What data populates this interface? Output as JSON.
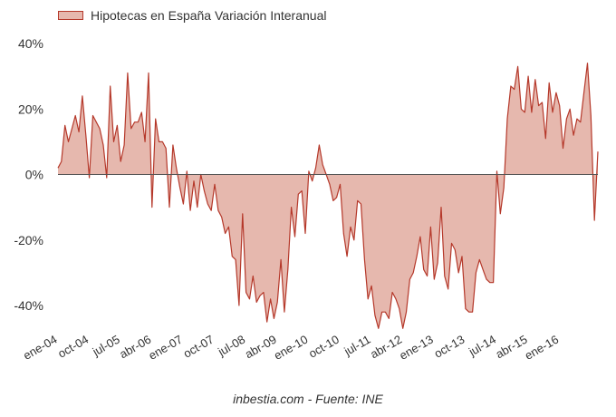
{
  "chart_data": {
    "type": "area",
    "legend": "Hipotecas en España Variación Interanual",
    "source": "inbestia.com - Fuente: INE",
    "ylim": [
      -50,
      45
    ],
    "y_ticks": [
      "40%",
      "20%",
      "0%",
      "-20%",
      "-40%"
    ],
    "y_tick_values": [
      40,
      20,
      0,
      -20,
      -40
    ],
    "x_tick_labels": [
      "ene-04",
      "oct-04",
      "jul-05",
      "abr-06",
      "ene-07",
      "oct-07",
      "jul-08",
      "abr-09",
      "ene-10",
      "oct-10",
      "jul-11",
      "abr-12",
      "ene-13",
      "oct-13",
      "jul-14",
      "abr-15",
      "ene-16"
    ],
    "x_tick_index": [
      0,
      9,
      18,
      27,
      36,
      45,
      54,
      63,
      72,
      81,
      90,
      99,
      108,
      117,
      126,
      135,
      144
    ],
    "series": [
      {
        "start": "ene-04",
        "frequency": "monthly",
        "values": [
          2,
          4,
          15,
          10,
          14,
          18,
          13,
          24,
          12,
          -1,
          18,
          16,
          14,
          9,
          -1,
          27,
          10,
          15,
          4,
          9,
          31,
          14,
          16,
          16,
          19,
          10,
          31,
          -10,
          17,
          10,
          10,
          8,
          -10,
          9,
          2,
          -4,
          -9,
          1,
          -11,
          -2,
          -10,
          0,
          -5,
          -9,
          -11,
          -3,
          -11,
          -13,
          -18,
          -16,
          -25,
          -26,
          -40,
          -12,
          -36,
          -38,
          -31,
          -39,
          -37,
          -36,
          -45,
          -38,
          -44,
          -39,
          -26,
          -42,
          -29,
          -10,
          -19,
          -6,
          -5,
          -18,
          1,
          -2,
          2,
          9,
          3,
          0,
          -3,
          -8,
          -7,
          -3,
          -18,
          -25,
          -16,
          -20,
          -8,
          -9,
          -26,
          -38,
          -34,
          -43,
          -47,
          -42,
          -42,
          -44,
          -36,
          -38,
          -41,
          -47,
          -42,
          -32,
          -30,
          -25,
          -19,
          -29,
          -31,
          -16,
          -32,
          -27,
          -10,
          -31,
          -35,
          -21,
          -23,
          -30,
          -25,
          -41,
          -42,
          -42,
          -30,
          -26,
          -29,
          -32,
          -33,
          -33,
          1,
          -12,
          -4,
          17,
          27,
          26,
          33,
          20,
          19,
          30,
          19,
          29,
          21,
          22,
          11,
          28,
          19,
          25,
          21,
          8,
          17,
          20,
          12,
          17,
          16,
          25,
          34,
          18,
          -14,
          7
        ]
      }
    ],
    "colors": {
      "line": "#b5382a",
      "fill": "#e6b8ae",
      "zero_line": "#555555",
      "text": "#333333"
    }
  }
}
